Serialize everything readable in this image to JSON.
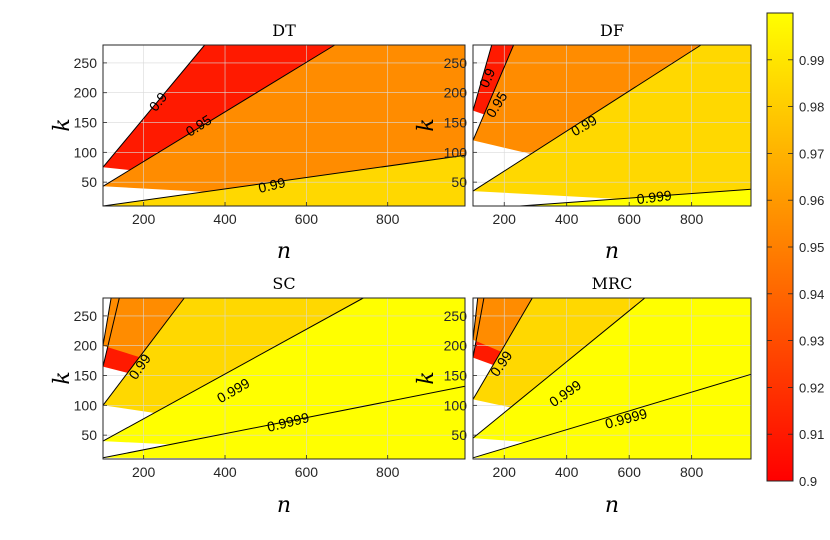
{
  "chart_data": [
    {
      "type": "contour",
      "title": "DT",
      "xlabel": "n",
      "ylabel": "k",
      "xlim": [
        100,
        990
      ],
      "ylim": [
        10,
        280
      ],
      "xticks": [
        "200",
        "400",
        "600",
        "800"
      ],
      "yticks": [
        "50",
        "100",
        "150",
        "200",
        "250"
      ],
      "contours": [
        {
          "level": 0.9,
          "label": "0.9",
          "points": [
            [
              100,
              75
            ],
            [
              350,
              280
            ]
          ]
        },
        {
          "level": 0.95,
          "label": "0.95",
          "points": [
            [
              100,
              43
            ],
            [
              670,
              280
            ]
          ]
        },
        {
          "level": 0.99,
          "label": "0.99",
          "points": [
            [
              100,
              10
            ],
            [
              990,
              95
            ]
          ]
        }
      ],
      "contour_labels": [
        {
          "text": "0.9",
          "at": [
            235,
            185
          ],
          "angle": -51
        },
        {
          "text": "0.95",
          "at": [
            335,
            145
          ],
          "angle": -32
        },
        {
          "text": "0.99",
          "at": [
            515,
            45
          ],
          "angle": -13
        }
      ]
    },
    {
      "type": "contour",
      "title": "DF",
      "xlabel": "n",
      "ylabel": "k",
      "xlim": [
        100,
        990
      ],
      "ylim": [
        10,
        280
      ],
      "xticks": [
        "200",
        "400",
        "600",
        "800"
      ],
      "yticks": [
        "50",
        "100",
        "150",
        "200",
        "250"
      ],
      "contours": [
        {
          "level": 0.9,
          "label": "0.9",
          "points": [
            [
              100,
              170
            ],
            [
              160,
              280
            ]
          ]
        },
        {
          "level": 0.95,
          "label": "0.95",
          "points": [
            [
              100,
              120
            ],
            [
              230,
              280
            ]
          ]
        },
        {
          "level": 0.99,
          "label": "0.99",
          "points": [
            [
              100,
              35
            ],
            [
              830,
              280
            ]
          ]
        },
        {
          "level": 0.999,
          "label": "0.999",
          "points": [
            [
              250,
              10
            ],
            [
              990,
              38
            ]
          ]
        }
      ],
      "contour_labels": [
        {
          "text": "0.9",
          "at": [
            145,
            225
          ],
          "angle": -66
        },
        {
          "text": "0.95",
          "at": [
            175,
            180
          ],
          "angle": -58
        },
        {
          "text": "0.99",
          "at": [
            455,
            145
          ],
          "angle": -30
        },
        {
          "text": "0.999",
          "at": [
            680,
            25
          ],
          "angle": -7
        }
      ]
    },
    {
      "type": "contour",
      "title": "SC",
      "xlabel": "n",
      "ylabel": "k",
      "xlim": [
        100,
        990
      ],
      "ylim": [
        10,
        280
      ],
      "xticks": [
        "200",
        "400",
        "600",
        "800"
      ],
      "yticks": [
        "50",
        "100",
        "150",
        "200",
        "250"
      ],
      "contours": [
        {
          "level": 0.9,
          "label": "",
          "points": [
            [
              100,
              165
            ],
            [
              140,
              280
            ]
          ]
        },
        {
          "level": 0.95,
          "label": "",
          "points": [
            [
              100,
              200
            ],
            [
              120,
              280
            ]
          ]
        },
        {
          "level": 0.99,
          "label": "0.99",
          "points": [
            [
              100,
              100
            ],
            [
              300,
              280
            ]
          ]
        },
        {
          "level": 0.999,
          "label": "0.999",
          "points": [
            [
              100,
              40
            ],
            [
              740,
              280
            ]
          ]
        },
        {
          "level": 0.9999,
          "label": "0.9999",
          "points": [
            [
              100,
              12
            ],
            [
              990,
              132
            ]
          ]
        }
      ],
      "contour_labels": [
        {
          "text": "0.99",
          "at": [
            190,
            165
          ],
          "angle": -55
        },
        {
          "text": "0.999",
          "at": [
            420,
            125
          ],
          "angle": -30
        },
        {
          "text": "0.9999",
          "at": [
            555,
            72
          ],
          "angle": -14
        }
      ]
    },
    {
      "type": "contour",
      "title": "MRC",
      "xlabel": "n",
      "ylabel": "k",
      "xlim": [
        100,
        990
      ],
      "ylim": [
        10,
        280
      ],
      "xticks": [
        "200",
        "400",
        "600",
        "800"
      ],
      "yticks": [
        "50",
        "100",
        "150",
        "200",
        "250"
      ],
      "contours": [
        {
          "level": 0.9,
          "label": "",
          "points": [
            [
              100,
              180
            ],
            [
              135,
              280
            ]
          ]
        },
        {
          "level": 0.95,
          "label": "",
          "points": [
            [
              100,
              210
            ],
            [
              115,
              280
            ]
          ]
        },
        {
          "level": 0.99,
          "label": "0.99",
          "points": [
            [
              100,
              110
            ],
            [
              290,
              280
            ]
          ]
        },
        {
          "level": 0.999,
          "label": "0.999",
          "points": [
            [
              100,
              45
            ],
            [
              650,
              280
            ]
          ]
        },
        {
          "level": 0.9999,
          "label": "0.9999",
          "points": [
            [
              100,
              12
            ],
            [
              990,
              152
            ]
          ]
        }
      ],
      "contour_labels": [
        {
          "text": "0.99",
          "at": [
            190,
            170
          ],
          "angle": -55
        },
        {
          "text": "0.999",
          "at": [
            395,
            120
          ],
          "angle": -35
        },
        {
          "text": "0.9999",
          "at": [
            590,
            78
          ],
          "angle": -15
        }
      ]
    }
  ],
  "colorbar": {
    "min": 0.9,
    "max": 1.0,
    "ticks": [
      "0.9",
      "0.91",
      "0.92",
      "0.93",
      "0.94",
      "0.95",
      "0.96",
      "0.97",
      "0.98",
      "0.99"
    ],
    "tick_values": [
      0.9,
      0.91,
      0.92,
      0.93,
      0.94,
      0.95,
      0.96,
      0.97,
      0.98,
      0.99
    ],
    "colormap": "autumn"
  },
  "colors": {
    "below_min": "#ffffff",
    "level_0_90": "#ff1a00",
    "level_0_95": "#ff8c00",
    "level_0_99": "#ffd800",
    "level_0_999": "#ffff00",
    "grid": "#d9d9d9",
    "contour_line": "#000000"
  }
}
